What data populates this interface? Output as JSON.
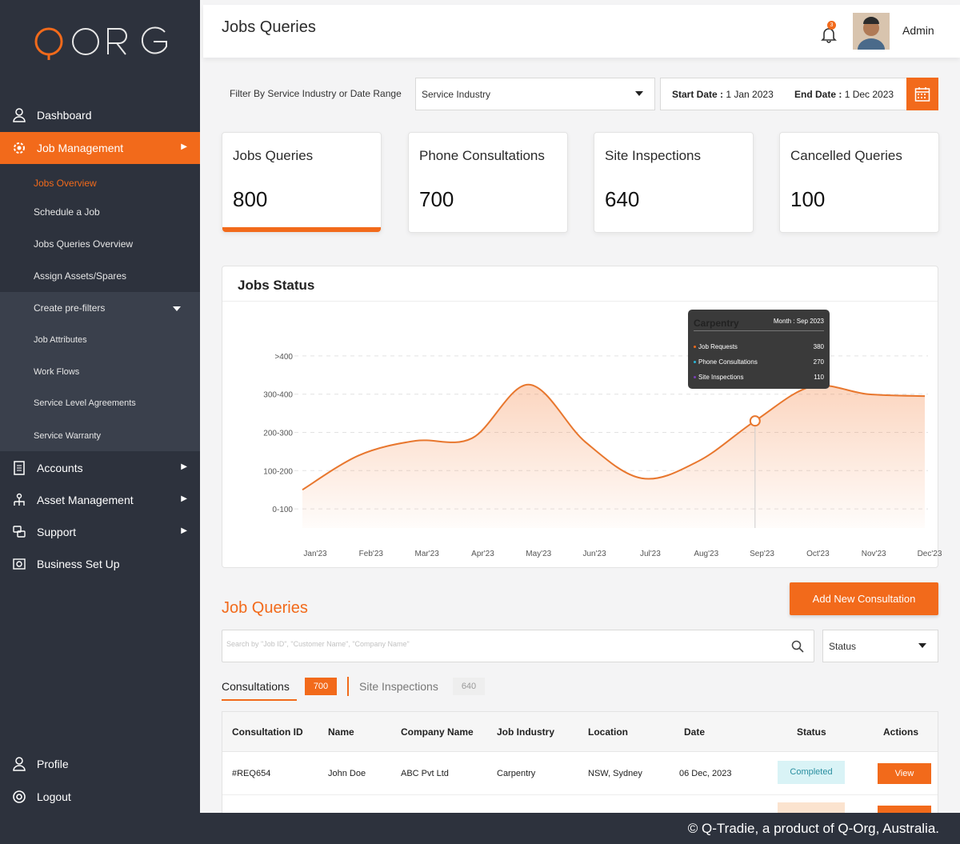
{
  "brand": {
    "logo_text": "QORG",
    "accent": "#f26a1b",
    "sidebar_bg": "#2d323d"
  },
  "sidebar": {
    "items": [
      {
        "label": "Dashboard",
        "icon": "user-icon"
      },
      {
        "label": "Job Management",
        "icon": "gear-icon",
        "active": true
      },
      {
        "label": "Accounts",
        "icon": "ledger-icon"
      },
      {
        "label": "Asset Management",
        "icon": "network-icon"
      },
      {
        "label": "Support",
        "icon": "support-icon"
      },
      {
        "label": "Business Set Up",
        "icon": "business-icon"
      }
    ],
    "sub_items": [
      {
        "label": "Jobs Overview",
        "active": true
      },
      {
        "label": "Schedule a Job"
      },
      {
        "label": "Jobs Queries Overview"
      },
      {
        "label": "Assign Assets/Spares"
      },
      {
        "label": "Create pre-filters"
      },
      {
        "label": "Job Attributes"
      },
      {
        "label": "Work Flows"
      },
      {
        "label": "Service Level Agreements"
      },
      {
        "label": "Service Warranty"
      }
    ],
    "bottom": [
      {
        "label": "Profile",
        "icon": "user-icon"
      },
      {
        "label": "Logout",
        "icon": "power-icon"
      }
    ]
  },
  "header": {
    "title": "Jobs Queries",
    "notification_count": "3",
    "user_name": "Admin"
  },
  "filter": {
    "label": "Filter By Service Industry or Date Range",
    "select_value": "Service Industry",
    "start_label": "Start Date :",
    "start_value": "1 Jan 2023",
    "end_label": "End Date :",
    "end_value": "1 Dec 2023"
  },
  "stats": [
    {
      "label": "Jobs Queries",
      "value": "800"
    },
    {
      "label": "Phone Consultations",
      "value": "700"
    },
    {
      "label": "Site Inspections",
      "value": "640"
    },
    {
      "label": "Cancelled Queries",
      "value": "100"
    }
  ],
  "chart_data": {
    "type": "area",
    "title": "Jobs Status",
    "categories": [
      "Jan'23",
      "Feb'23",
      "Mar'23",
      "Apr'23",
      "May'23",
      "Jun'23",
      "Jul'23",
      "Aug'23",
      "Sep'23",
      "Oct'23",
      "Nov'23",
      "Dec'23"
    ],
    "y_ticks": [
      ">400",
      "300-400",
      "200-300",
      "100-200",
      "0-100"
    ],
    "ylim": [
      0,
      500
    ],
    "series": [
      {
        "values": [
          100,
          190,
          228,
          235,
          375,
          225,
          130,
          175,
          280,
          370,
          350,
          345
        ]
      }
    ],
    "grid": true,
    "tooltip": {
      "category": "Carpentry",
      "month": "Month : Sep 2023",
      "rows": [
        {
          "label": "Job Requests",
          "value": "380",
          "color": "#f26a1b"
        },
        {
          "label": "Phone Consultations",
          "value": "270",
          "color": "#29b6d8"
        },
        {
          "label": "Site Inspections",
          "value": "110",
          "color": "#7b3fb8"
        }
      ]
    }
  },
  "queries": {
    "title": "Job Queries",
    "add_button": "Add New Consultation",
    "search_placeholder": "Search by \"Job ID\", \"Customer Name\", \"Company Name\"",
    "status_select": "Status",
    "tabs": [
      {
        "label": "Consultations",
        "count": "700"
      },
      {
        "label": "Site Inspections",
        "count": "640"
      }
    ],
    "columns": [
      "Consultation ID",
      "Name",
      "Company Name",
      "Job Industry",
      "Location",
      "Date",
      "Status",
      "Actions"
    ],
    "rows": [
      {
        "id": "#REQ654",
        "name": "John Doe",
        "company": "ABC Pvt Ltd",
        "industry": "Carpentry",
        "location": "NSW, Sydney",
        "date": "06 Dec, 2023",
        "status": "Completed",
        "action": "View"
      }
    ]
  },
  "footer": {
    "text": "© Q-Tradie, a product of Q-Org, Australia."
  }
}
